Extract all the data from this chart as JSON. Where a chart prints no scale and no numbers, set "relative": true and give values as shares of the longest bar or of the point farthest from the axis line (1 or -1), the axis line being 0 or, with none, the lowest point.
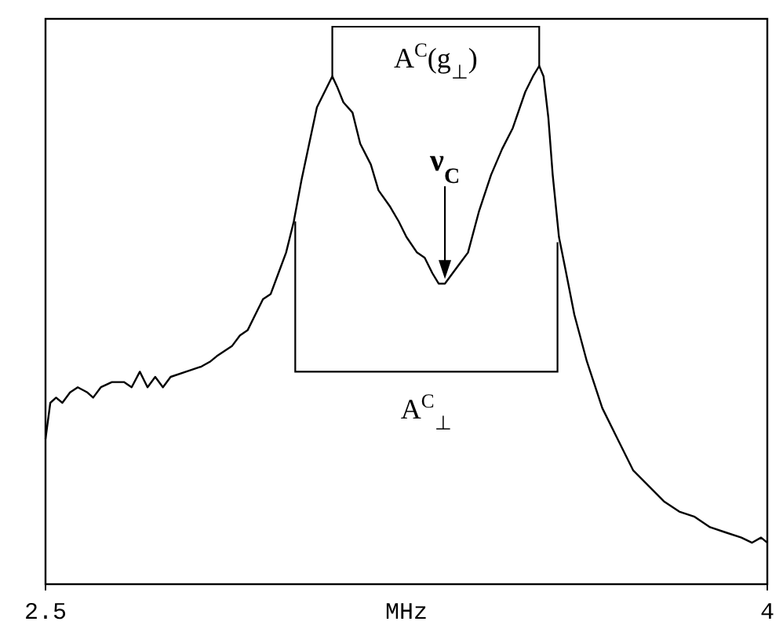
{
  "chart_data": {
    "type": "line",
    "relative": true,
    "xlabel": "MHz",
    "xlim": [
      2.5,
      4
    ],
    "xticks": [
      2.5,
      4
    ],
    "tick_labels": "x",
    "grid": false,
    "marker": "none",
    "line_style": "solid",
    "x": [
      2.5,
      2.51,
      2.522,
      2.535,
      2.551,
      2.567,
      2.587,
      2.599,
      2.615,
      2.638,
      2.663,
      2.679,
      2.696,
      2.712,
      2.728,
      2.744,
      2.76,
      2.792,
      2.824,
      2.843,
      2.856,
      2.872,
      2.888,
      2.904,
      2.92,
      2.936,
      2.952,
      2.968,
      2.984,
      3.0,
      3.016,
      3.032,
      3.048,
      3.064,
      3.08,
      3.096,
      3.106,
      3.119,
      3.138,
      3.154,
      3.176,
      3.192,
      3.215,
      3.234,
      3.25,
      3.272,
      3.288,
      3.304,
      3.317,
      3.33,
      3.346,
      3.362,
      3.378,
      3.401,
      3.426,
      3.449,
      3.471,
      3.497,
      3.513,
      3.526,
      3.535,
      3.545,
      3.554,
      3.567,
      3.58,
      3.599,
      3.625,
      3.657,
      3.689,
      3.721,
      3.753,
      3.785,
      3.817,
      3.849,
      3.881,
      3.913,
      3.946,
      3.968,
      3.987,
      4.0
    ],
    "series": [
      {
        "color": "#000000",
        "values": [
          0.28,
          0.35,
          0.36,
          0.35,
          0.37,
          0.38,
          0.37,
          0.36,
          0.38,
          0.39,
          0.39,
          0.38,
          0.41,
          0.38,
          0.4,
          0.38,
          0.4,
          0.41,
          0.42,
          0.43,
          0.44,
          0.45,
          0.46,
          0.48,
          0.49,
          0.52,
          0.55,
          0.56,
          0.6,
          0.64,
          0.7,
          0.78,
          0.85,
          0.92,
          0.95,
          0.98,
          0.96,
          0.93,
          0.91,
          0.85,
          0.81,
          0.76,
          0.73,
          0.7,
          0.67,
          0.64,
          0.63,
          0.6,
          0.58,
          0.58,
          0.6,
          0.62,
          0.64,
          0.72,
          0.79,
          0.84,
          0.88,
          0.95,
          0.98,
          1,
          0.98,
          0.9,
          0.79,
          0.67,
          0.61,
          0.52,
          0.43,
          0.34,
          0.28,
          0.22,
          0.19,
          0.16,
          0.14,
          0.13,
          0.11,
          0.1,
          0.09,
          0.08,
          0.09,
          0.08
        ]
      }
    ],
    "annotations": [
      "A$^{C}$(g$_{⊥}$)",
      "ν$_{C}$",
      "A$^{C}$$_{⊥}$"
    ]
  }
}
